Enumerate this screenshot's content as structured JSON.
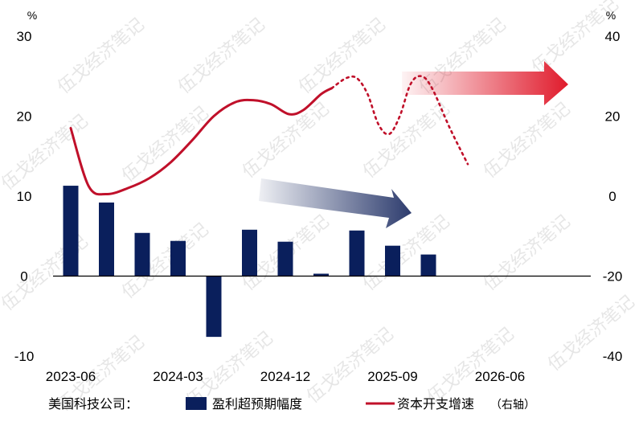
{
  "chart_data": {
    "type": "bar+line",
    "left_axis": {
      "unit": "%",
      "ylim": [
        -10,
        30
      ],
      "ticks": [
        "30",
        "20",
        "10",
        "0",
        "-10"
      ]
    },
    "right_axis": {
      "unit": "%",
      "ylim": [
        -40,
        40
      ],
      "ticks": [
        "40",
        "20",
        "0",
        "-20",
        "-40"
      ]
    },
    "x_tick_labels": [
      "2023-06",
      "2024-03",
      "2024-12",
      "2025-09",
      "2026-06"
    ],
    "bars": {
      "name": "盈利超预期幅度",
      "color": "#0a1f5c",
      "values": [
        11.3,
        9.2,
        5.4,
        4.4,
        -7.6,
        5.8,
        4.3,
        0.3,
        5.7,
        3.8,
        2.7
      ]
    },
    "line": {
      "name": "资本开支增速",
      "name_note": "（右轴）",
      "color": "#c0102a",
      "solid_points": [
        [
          0.0,
          17
        ],
        [
          0.5,
          2.5
        ],
        [
          1.0,
          0.5
        ],
        [
          1.6,
          2
        ],
        [
          2.2,
          4.5
        ],
        [
          2.8,
          8.5
        ],
        [
          3.4,
          14
        ],
        [
          4.0,
          20
        ],
        [
          4.6,
          23.5
        ],
        [
          5.1,
          24
        ],
        [
          5.6,
          23
        ],
        [
          6.1,
          20.5
        ],
        [
          6.5,
          21.5
        ],
        [
          7.0,
          25.5
        ],
        [
          7.3,
          27
        ]
      ],
      "forecast_points": [
        [
          7.3,
          27
        ],
        [
          7.7,
          29.5
        ],
        [
          8.0,
          29.5
        ],
        [
          8.3,
          25.5
        ],
        [
          8.6,
          18
        ],
        [
          8.9,
          15.5
        ],
        [
          9.2,
          20
        ],
        [
          9.5,
          28
        ],
        [
          9.8,
          30
        ],
        [
          10.1,
          27
        ],
        [
          10.6,
          17
        ],
        [
          11.1,
          8
        ]
      ]
    },
    "legend": {
      "prefix": "美国科技公司：",
      "bar_label": "盈利超预期幅度",
      "line_label": "资本开支增速",
      "line_note": "（右轴）"
    },
    "watermark": "伍戈经济笔记",
    "arrows": {
      "blue_color": "#2d3c6e",
      "red_color": "#e01b2c"
    }
  }
}
